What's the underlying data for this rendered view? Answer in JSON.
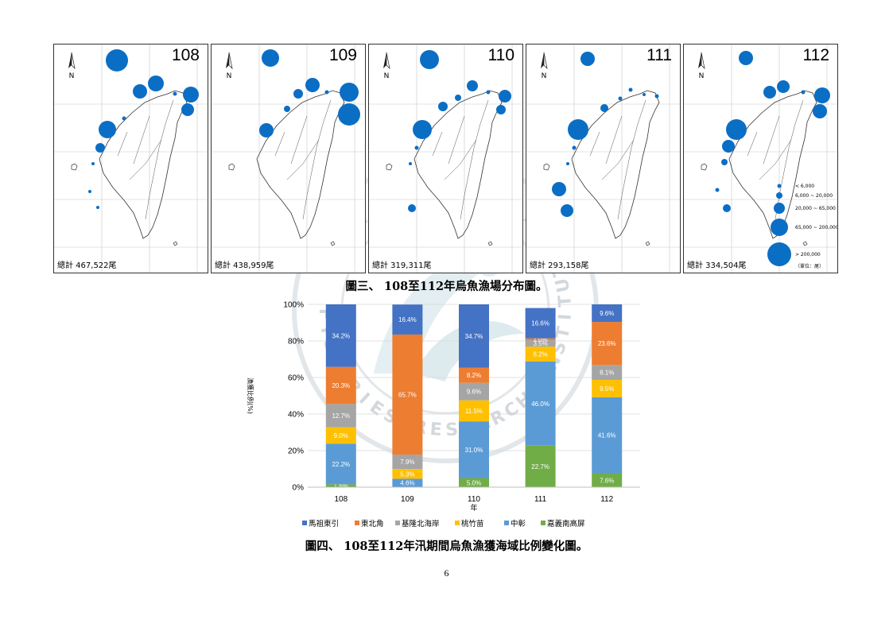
{
  "colors": {
    "bubble": "#0b6ec5",
    "series": [
      "#4472c4",
      "#ed7d31",
      "#a5a5a5",
      "#ffc000",
      "#5b9bd5",
      "#70ad47"
    ],
    "watermark": "#9aa8b2"
  },
  "maps": {
    "panels": [
      {
        "year": "108",
        "total": "總計 467,522尾"
      },
      {
        "year": "109",
        "total": "總計 438,959尾"
      },
      {
        "year": "110",
        "total": "總計 319,311尾"
      },
      {
        "year": "111",
        "total": "總計 293,158尾"
      },
      {
        "year": "112",
        "total": "總計 334,504尾"
      }
    ],
    "north_label": "N",
    "legend": {
      "classes": [
        "< 6,000",
        "6,000 ~ 20,000",
        "20,000 ~ 65,000",
        "65,000 ~ 200,000",
        "> 200,000"
      ],
      "unit": "（單位：尾）"
    }
  },
  "captions": {
    "fig3": "圖三、 108至112年烏魚漁場分布圖。",
    "fig4": "圖四、 108至112年汛期間烏魚漁獲海域比例變化圖。"
  },
  "page_number": "6",
  "watermark": {
    "chinese": "農業部水產試驗所",
    "english": "FISHERIES RESEARCH INSTITUTE"
  },
  "chart_data": {
    "type": "stacked_bar_percent",
    "categories": [
      "108",
      "109",
      "110",
      "111",
      "112"
    ],
    "xlabel": "年",
    "ylabel": "漁獲比例(%)",
    "ylim": [
      0,
      100
    ],
    "yticks": [
      "0%",
      "20%",
      "40%",
      "60%",
      "80%",
      "100%"
    ],
    "legend_position": "bottom",
    "series": [
      {
        "name": "嘉義南高屏",
        "values": [
          1.6,
          0,
          5.0,
          22.7,
          7.6
        ],
        "labels": [
          "1.6%",
          "",
          "5.0%",
          "22.7%",
          "7.6%"
        ]
      },
      {
        "name": "中彰",
        "values": [
          22.2,
          4.6,
          31.0,
          46.0,
          41.6
        ],
        "labels": [
          "22.2%",
          "4.6%",
          "31.0%",
          "46.0%",
          "41.6%"
        ]
      },
      {
        "name": "桃竹苗",
        "values": [
          9.0,
          5.3,
          11.5,
          8.2,
          9.5
        ],
        "labels": [
          "9.0%",
          "5.3%",
          "11.5%",
          "8.2%",
          "9.5%"
        ]
      },
      {
        "name": "基隆北海岸",
        "values": [
          12.7,
          7.9,
          9.6,
          3.5,
          8.1
        ],
        "labels": [
          "12.7%",
          "7.9%",
          "9.6%",
          "3.5%",
          "8.1%"
        ]
      },
      {
        "name": "東北角",
        "values": [
          20.3,
          65.7,
          8.2,
          1.0,
          23.6
        ],
        "labels": [
          "20.3%",
          "65.7%",
          "8.2%",
          "1.0%",
          "23.6%"
        ]
      },
      {
        "name": "馬祖東引",
        "values": [
          34.2,
          16.4,
          34.7,
          16.6,
          9.6
        ],
        "labels": [
          "34.2%",
          "16.4%",
          "34.7%",
          "16.6%",
          "9.6%"
        ]
      }
    ],
    "legend_order": [
      "馬祖東引",
      "東北角",
      "基隆北海岸",
      "桃竹苗",
      "中彰",
      "嘉義南高屏"
    ]
  }
}
